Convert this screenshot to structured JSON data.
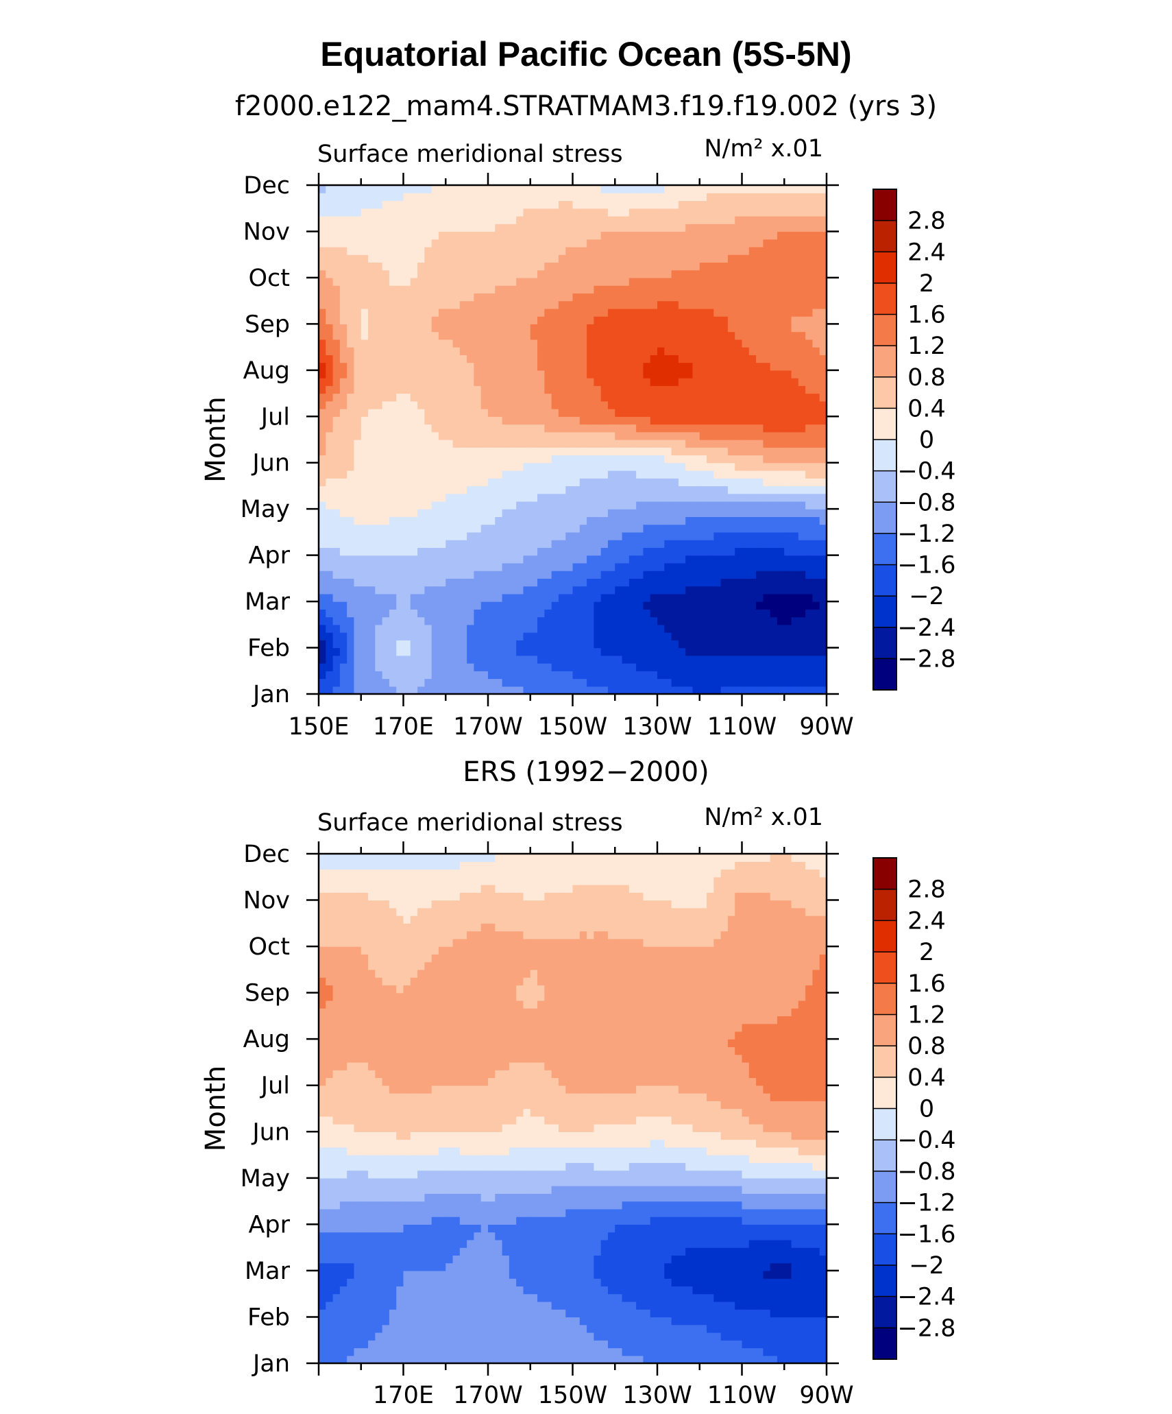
{
  "page": {
    "title": "Equatorial Pacific Ocean (5S-5N)"
  },
  "colors": {
    "contour_levels": [
      -2.8,
      -2.4,
      -2.0,
      -1.6,
      -1.2,
      -0.8,
      -0.4,
      0,
      0.4,
      0.8,
      1.2,
      1.6,
      2.0,
      2.4,
      2.8
    ],
    "fills": [
      "#00007f",
      "#00199e",
      "#0033cc",
      "#1a4fe6",
      "#3d70f0",
      "#7c9cf4",
      "#a9c0f8",
      "#d6e6fc",
      "#fee8d8",
      "#fcc8a8",
      "#f9a47c",
      "#f57a4a",
      "#ef4f1c",
      "#e02e00",
      "#bb2200",
      "#880000"
    ]
  },
  "chart_data": [
    {
      "type": "heatmap",
      "plot_type": "filled contour",
      "title": "f2000.e122_mam4.STRATMAM3.f19.f19.002 (yrs 3)",
      "left_label": "Surface meridional stress",
      "units_label": "N/m² x.01",
      "ylabel": "Month",
      "x_tick_labels": [
        "150E",
        "170E",
        "170W",
        "150W",
        "130W",
        "110W",
        "90W"
      ],
      "y_tick_labels": [
        "Jan",
        "Feb",
        "Mar",
        "Apr",
        "May",
        "Jun",
        "Jul",
        "Aug",
        "Sep",
        "Oct",
        "Nov",
        "Dec"
      ],
      "colorbar_labels": [
        "2.8",
        "2.4",
        "2",
        "1.6",
        "1.2",
        "0.8",
        "0.4",
        "0",
        "−0.4",
        "−0.8",
        "−1.2",
        "−1.6",
        "−2",
        "−2.4",
        "−2.8"
      ],
      "lon": [
        150,
        160,
        170,
        180,
        190,
        200,
        210,
        220,
        230,
        240,
        250,
        260,
        270
      ],
      "months": [
        "Jan",
        "Feb",
        "Mar",
        "Apr",
        "May",
        "Jun",
        "Jul",
        "Aug",
        "Sep",
        "Oct",
        "Nov",
        "Dec"
      ],
      "values": [
        [
          -1.8,
          -1.0,
          -0.8,
          -0.9,
          -1.0,
          -1.2,
          -1.4,
          -1.6,
          -1.8,
          -2.0,
          -1.9,
          -1.8,
          -1.9
        ],
        [
          -2.8,
          -1.0,
          -0.3,
          -1.0,
          -1.5,
          -1.7,
          -1.9,
          -2.1,
          -2.3,
          -2.5,
          -2.5,
          -2.6,
          -2.5
        ],
        [
          -1.4,
          -1.0,
          -0.8,
          -1.0,
          -1.2,
          -1.4,
          -1.8,
          -2.2,
          -2.5,
          -2.6,
          -2.7,
          -3.0,
          -2.8
        ],
        [
          -0.5,
          -0.4,
          -0.4,
          -0.5,
          -0.6,
          -0.8,
          -1.0,
          -1.4,
          -1.8,
          -2.0,
          -2.1,
          -2.1,
          -2.0
        ],
        [
          -0.1,
          0.2,
          0.1,
          -0.1,
          -0.3,
          -0.5,
          -0.6,
          -0.8,
          -0.9,
          -1.0,
          -1.0,
          -1.0,
          -0.9
        ],
        [
          0.8,
          0.3,
          0.3,
          0.3,
          0.2,
          0.0,
          -0.2,
          -0.3,
          -0.2,
          0.2,
          0.6,
          0.8,
          0.9
        ],
        [
          1.0,
          0.4,
          0.3,
          0.5,
          0.8,
          1.0,
          1.3,
          1.6,
          1.8,
          1.9,
          1.8,
          2.0,
          1.7
        ],
        [
          2.3,
          0.6,
          0.5,
          0.6,
          0.9,
          1.1,
          1.5,
          1.8,
          2.1,
          2.0,
          1.7,
          1.6,
          1.3
        ],
        [
          1.5,
          0.3,
          0.7,
          0.9,
          1.0,
          1.2,
          1.5,
          1.8,
          1.9,
          1.8,
          1.5,
          1.2,
          1.0
        ],
        [
          0.9,
          0.6,
          0.3,
          0.6,
          0.7,
          0.8,
          1.0,
          1.1,
          1.2,
          1.3,
          1.4,
          1.5,
          1.6
        ],
        [
          0.2,
          0.2,
          0.3,
          0.4,
          0.4,
          0.5,
          0.7,
          0.8,
          0.8,
          0.9,
          1.0,
          1.2,
          1.3
        ],
        [
          -0.5,
          -0.3,
          -0.1,
          0.0,
          0.1,
          0.3,
          0.2,
          -0.2,
          -0.1,
          0.2,
          0.3,
          0.2,
          0.1
        ]
      ]
    },
    {
      "type": "heatmap",
      "plot_type": "filled contour",
      "title": "ERS (1992−2000)",
      "left_label": "Surface meridional stress",
      "units_label": "N/m² x.01",
      "ylabel": "Month",
      "x_tick_labels": [
        "170E",
        "170W",
        "150W",
        "130W",
        "110W",
        "90W"
      ],
      "y_tick_labels": [
        "Jan",
        "Feb",
        "Mar",
        "Apr",
        "May",
        "Jun",
        "Jul",
        "Aug",
        "Sep",
        "Oct",
        "Nov",
        "Dec"
      ],
      "colorbar_labels": [
        "2.8",
        "2.4",
        "2",
        "1.6",
        "1.2",
        "0.8",
        "0.4",
        "0",
        "−0.4",
        "−0.8",
        "−1.2",
        "−1.6",
        "−2",
        "−2.4",
        "−2.8"
      ],
      "lon": [
        150,
        160,
        170,
        180,
        190,
        200,
        210,
        220,
        230,
        240,
        250,
        260,
        270
      ],
      "months": [
        "Jan",
        "Feb",
        "Mar",
        "Apr",
        "May",
        "Jun",
        "Jul",
        "Aug",
        "Sep",
        "Oct",
        "Nov",
        "Dec"
      ],
      "values": [
        [
          -1.3,
          -1.1,
          -0.9,
          -1.0,
          -0.8,
          -0.9,
          -1.0,
          -1.1,
          -1.2,
          -1.2,
          -1.4,
          -1.6,
          -1.8
        ],
        [
          -1.6,
          -1.4,
          -1.1,
          -1.2,
          -1.0,
          -1.1,
          -1.2,
          -1.4,
          -1.6,
          -1.7,
          -1.9,
          -2.0,
          -2.0
        ],
        [
          -1.8,
          -1.6,
          -1.2,
          -1.2,
          -1.1,
          -1.3,
          -1.4,
          -1.8,
          -2.0,
          -2.3,
          -2.4,
          -2.5,
          -2.2
        ],
        [
          -1.0,
          -1.1,
          -1.2,
          -1.3,
          -1.2,
          -1.3,
          -1.4,
          -1.6,
          -1.7,
          -1.7,
          -1.7,
          -1.7,
          -1.6
        ],
        [
          -0.4,
          -0.5,
          -0.4,
          -0.6,
          -0.5,
          -0.5,
          -0.7,
          -0.6,
          -0.7,
          -0.6,
          -0.5,
          -0.4,
          -0.3
        ],
        [
          0.2,
          0.4,
          0.5,
          0.4,
          0.4,
          0.3,
          0.4,
          0.3,
          0.2,
          0.4,
          0.6,
          0.9,
          1.0
        ],
        [
          0.8,
          0.7,
          0.9,
          0.8,
          0.8,
          0.5,
          0.9,
          0.9,
          0.8,
          0.9,
          1.1,
          1.4,
          1.3
        ],
        [
          0.9,
          0.9,
          0.8,
          1.0,
          1.0,
          1.0,
          1.1,
          1.1,
          1.0,
          1.0,
          1.3,
          1.3,
          1.4
        ],
        [
          1.4,
          0.9,
          0.8,
          1.1,
          1.0,
          0.7,
          1.0,
          1.0,
          1.0,
          0.8,
          0.9,
          1.1,
          1.3
        ],
        [
          0.8,
          0.8,
          0.5,
          0.8,
          1.0,
          0.9,
          0.9,
          0.9,
          0.8,
          0.8,
          0.9,
          1.0,
          1.2
        ],
        [
          0.6,
          0.5,
          0.3,
          0.4,
          0.6,
          0.4,
          0.5,
          0.5,
          0.4,
          0.3,
          0.9,
          0.8,
          0.6
        ],
        [
          -0.2,
          -0.3,
          -0.1,
          -0.2,
          -0.1,
          0.1,
          0.1,
          0.2,
          0.1,
          0.2,
          0.3,
          0.4,
          0.2
        ]
      ]
    }
  ]
}
